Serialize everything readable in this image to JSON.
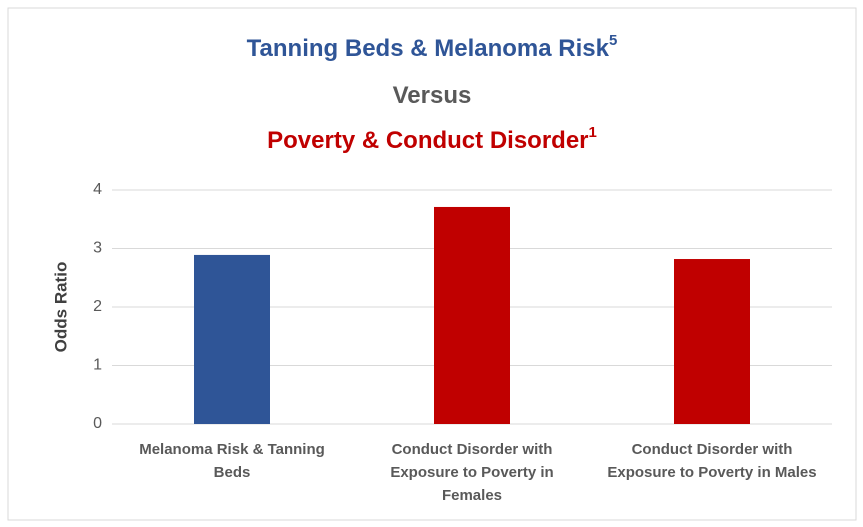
{
  "chart_data": {
    "type": "bar",
    "title_lines": [
      {
        "text": "Tanning Beds & Melanoma Risk",
        "superscript": "5",
        "color": "#2f5597"
      },
      {
        "text": "Versus",
        "color": "#595959"
      },
      {
        "text": "Poverty & Conduct Disorder",
        "superscript": "1",
        "color": "#c00000"
      }
    ],
    "y_label": "Odds Ratio",
    "categories": [
      "Melanoma Risk & Tanning Beds",
      "Conduct Disorder with Exposure to Poverty in Females",
      "Conduct Disorder with Exposure to Poverty in Males"
    ],
    "values": [
      2.89,
      3.71,
      2.82
    ],
    "colors": [
      "#2f5597",
      "#c00000",
      "#c00000"
    ],
    "ylim": [
      0,
      4
    ],
    "yticks": [
      0,
      1,
      2,
      3,
      4
    ],
    "grid": true
  }
}
